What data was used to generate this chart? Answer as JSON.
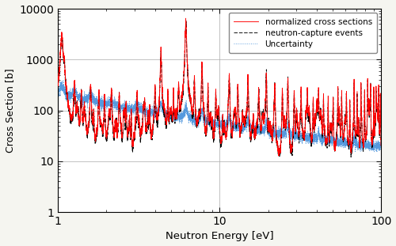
{
  "title": "",
  "xlabel": "Neutron Energy [eV]",
  "ylabel": "Cross Section [b]",
  "xlim": [
    1,
    100
  ],
  "ylim": [
    1,
    10000
  ],
  "legend": [
    {
      "label": "normalized cross sections",
      "color": "red",
      "ls": "-"
    },
    {
      "label": "neutron-capture events",
      "color": "black",
      "ls": "--"
    },
    {
      "label": "Uncertainty",
      "color": "#5599dd",
      "ls": ":"
    }
  ],
  "background_color": "#ffffff",
  "fig_facecolor": "#f5f5f0",
  "grid_color": "#aaaaaa"
}
